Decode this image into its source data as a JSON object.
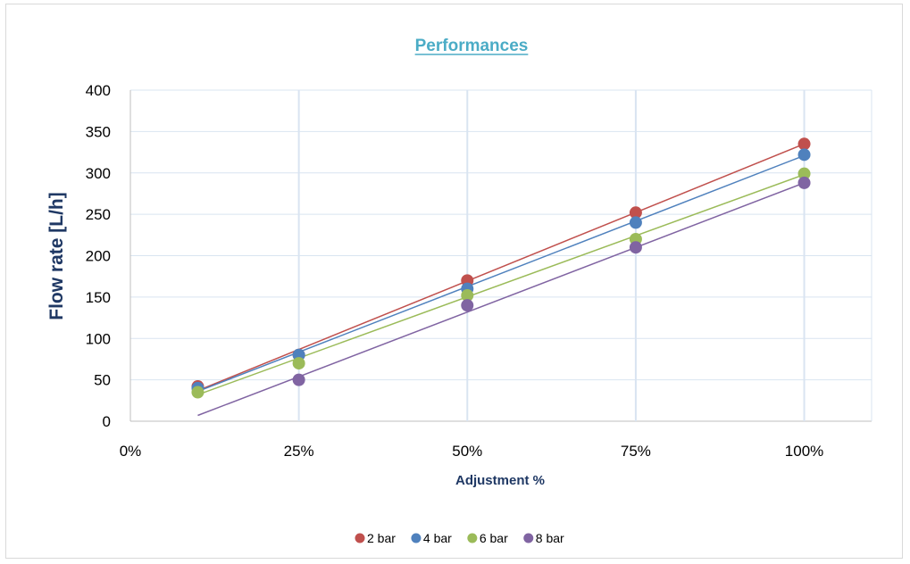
{
  "chart_data": {
    "type": "scatter",
    "title": "Performances",
    "xlabel": "Adjustment %",
    "ylabel": "Flow rate [L/h]",
    "xlim": [
      0,
      1.1
    ],
    "ylim": [
      0,
      400
    ],
    "x_ticks": [
      0,
      0.25,
      0.5,
      0.75,
      1.0
    ],
    "x_tick_labels": [
      "0%",
      "25%",
      "50%",
      "75%",
      "100%"
    ],
    "y_ticks": [
      0,
      50,
      100,
      150,
      200,
      250,
      300,
      350,
      400
    ],
    "y_tick_labels": [
      "0",
      "50",
      "100",
      "150",
      "200",
      "250",
      "300",
      "350",
      "400"
    ],
    "grid": true,
    "legend_position": "bottom",
    "series": [
      {
        "name": "2 bar",
        "color": "#c0504d",
        "x": [
          0.1,
          0.25,
          0.5,
          0.75,
          1.0
        ],
        "y": [
          42,
          80,
          170,
          252,
          335
        ],
        "trendline": [
          [
            0.1,
            37
          ],
          [
            1.0,
            335
          ]
        ]
      },
      {
        "name": "4 bar",
        "color": "#4f81bd",
        "x": [
          0.1,
          0.25,
          0.5,
          0.75,
          1.0
        ],
        "y": [
          40,
          80,
          160,
          240,
          322
        ],
        "trendline": [
          [
            0.1,
            36
          ],
          [
            1.0,
            321
          ]
        ]
      },
      {
        "name": "6 bar",
        "color": "#9bbb59",
        "x": [
          0.1,
          0.25,
          0.5,
          0.75,
          1.0
        ],
        "y": [
          35,
          70,
          152,
          220,
          299
        ],
        "trendline": [
          [
            0.1,
            32
          ],
          [
            1.0,
            298
          ]
        ]
      },
      {
        "name": "8 bar",
        "color": "#8064a2",
        "x": [
          0.1,
          0.25,
          0.5,
          0.75,
          1.0
        ],
        "y": [
          null,
          50,
          140,
          210,
          288
        ],
        "trendline": [
          [
            0.1,
            7
          ],
          [
            1.0,
            288
          ]
        ]
      }
    ]
  }
}
